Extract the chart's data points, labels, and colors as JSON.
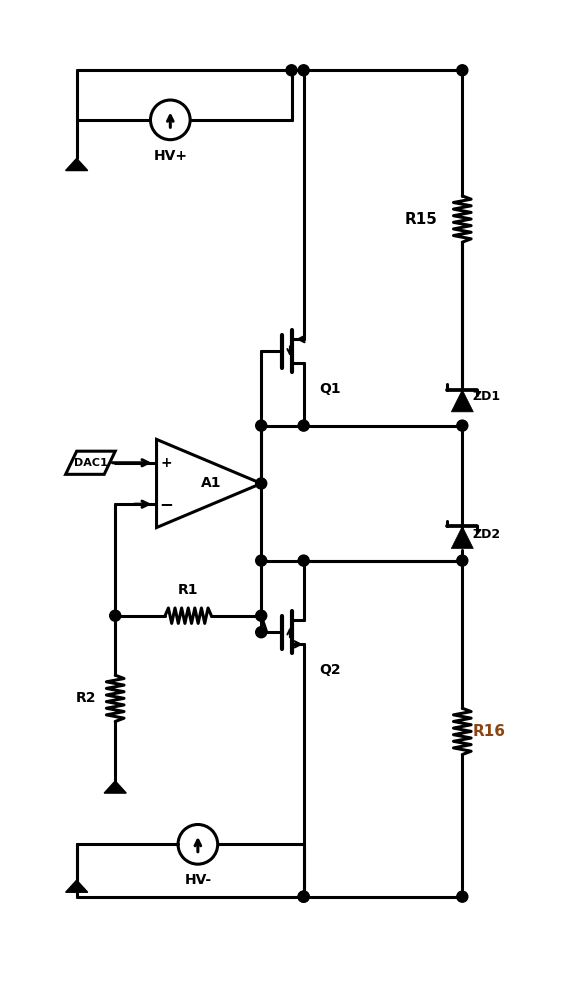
{
  "bg_color": "#ffffff",
  "line_color": "#000000",
  "line_width": 2.2,
  "figsize": [
    5.61,
    10.0
  ],
  "dpi": 100,
  "labels": {
    "HVplus": "HV+",
    "HVminus": "HV-",
    "DAC1": "DAC1",
    "A1": "A1",
    "Q1": "Q1",
    "Q2": "Q2",
    "R1": "R1",
    "R2": "R2",
    "R15": "R15",
    "R16": "R16",
    "ZD1": "ZD1",
    "ZD2": "ZD2"
  },
  "R16_color": "#8B4513"
}
